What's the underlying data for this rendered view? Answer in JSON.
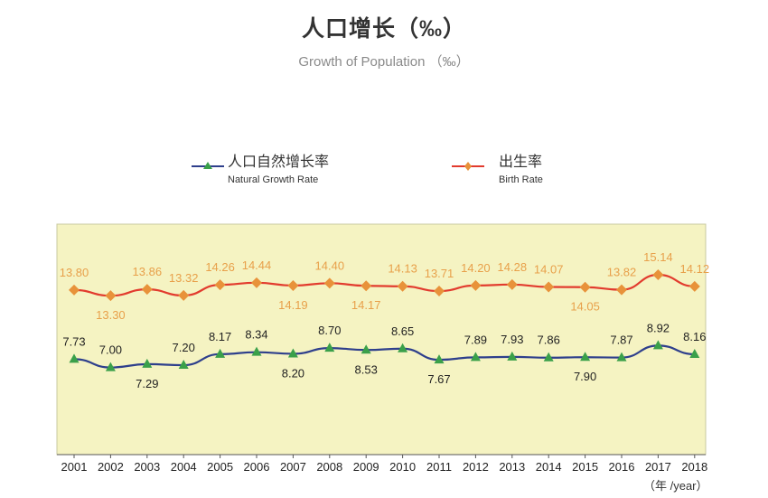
{
  "header": {
    "title": "人口增长（‰）",
    "subtitle": "Growth of Population （‰）"
  },
  "legend": [
    {
      "cn": "人口自然增长率",
      "en": "Natural Growth Rate",
      "color": "#2e3f8c",
      "marker_color": "#3aa04a",
      "marker": "triangle"
    },
    {
      "cn": "出生率",
      "en": "Birth Rate",
      "color": "#e23b2e",
      "marker_color": "#e8923a",
      "marker": "diamond"
    }
  ],
  "x_unit_label": "（年 /year）",
  "colors": {
    "plot_background": "#f5f3c2",
    "plot_border": "#c8c8a0",
    "birth_label": "#e8a04a",
    "natural_label": "#222222"
  },
  "chart_data": {
    "type": "line",
    "title": "人口增长（‰）",
    "subtitle": "Growth of Population （‰）",
    "xlabel": "（年 /year）",
    "ylabel": "",
    "x": [
      "2001",
      "2002",
      "2003",
      "2004",
      "2005",
      "2006",
      "2007",
      "2008",
      "2009",
      "2010",
      "2011",
      "2012",
      "2013",
      "2014",
      "2015",
      "2016",
      "2017",
      "2018"
    ],
    "ylim": [
      0,
      18
    ],
    "grid": false,
    "legend_position": "top",
    "series": [
      {
        "name": "出生率 Birth Rate",
        "values": [
          13.8,
          13.3,
          13.86,
          13.32,
          14.26,
          14.44,
          14.19,
          14.4,
          14.17,
          14.13,
          13.71,
          14.2,
          14.28,
          14.07,
          14.05,
          13.82,
          15.14,
          14.12
        ],
        "labels": [
          "13.80",
          "13.30",
          "13.86",
          "13.32",
          "14.26",
          "14.44",
          "14.19",
          "14.40",
          "14.17",
          "14.13",
          "13.71",
          "14.20",
          "14.28",
          "14.07",
          "14.05",
          "13.82",
          "15.14",
          "14.12"
        ],
        "label_positions": [
          "above",
          "below",
          "above",
          "above",
          "above",
          "above",
          "below",
          "above",
          "below",
          "above",
          "above",
          "above",
          "above",
          "above",
          "below",
          "above",
          "above",
          "above"
        ]
      },
      {
        "name": "人口自然增长率 Natural Growth Rate",
        "values": [
          7.73,
          7.0,
          7.29,
          7.2,
          8.17,
          8.34,
          8.2,
          8.7,
          8.53,
          8.65,
          7.67,
          7.89,
          7.93,
          7.86,
          7.9,
          7.87,
          8.92,
          8.16
        ],
        "labels": [
          "7.73",
          "7.00",
          "7.29",
          "7.20",
          "8.17",
          "8.34",
          "8.20",
          "8.70",
          "8.53",
          "8.65",
          "7.67",
          "7.89",
          "7.93",
          "7.86",
          "7.90",
          "7.87",
          "8.92",
          "8.16"
        ],
        "label_positions": [
          "above",
          "above",
          "below",
          "above",
          "above",
          "above",
          "below",
          "above",
          "below",
          "above",
          "below",
          "above",
          "above",
          "above",
          "below",
          "above",
          "above",
          "above"
        ]
      }
    ]
  }
}
